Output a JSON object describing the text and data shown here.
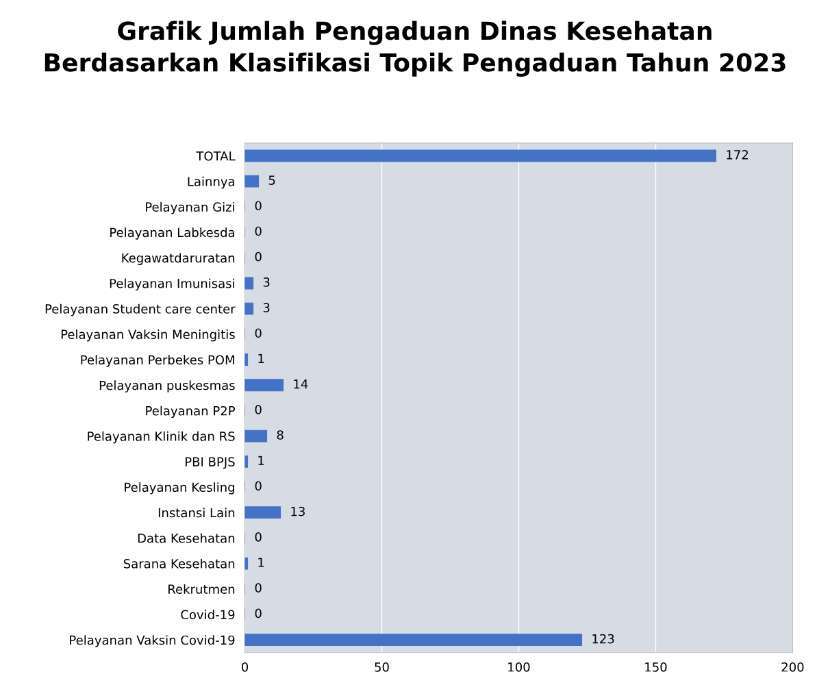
{
  "chart_data": {
    "type": "bar",
    "orientation": "horizontal",
    "title": "Grafik Jumlah Pengaduan Dinas Kesehatan\nBerdasarkan Klasifikasi Topik Pengaduan Tahun 2023",
    "categories": [
      "TOTAL",
      "Lainnya",
      "Pelayanan Gizi",
      "Pelayanan Labkesda",
      "Kegawatdaruratan",
      "Pelayanan Imunisasi",
      "Pelayanan Student care center",
      "Pelayanan Vaksin Meningitis",
      "Pelayanan Perbekes POM",
      "Pelayanan puskesmas",
      "Pelayanan P2P",
      "Pelayanan Klinik dan RS",
      "PBI BPJS",
      "Pelayanan Kesling",
      "Instansi Lain",
      "Data Kesehatan",
      "Sarana Kesehatan",
      "Rekrutmen",
      "Covid-19",
      "Pelayanan Vaksin Covid-19"
    ],
    "values": [
      172,
      5,
      0,
      0,
      0,
      3,
      3,
      0,
      1,
      14,
      0,
      8,
      1,
      0,
      13,
      0,
      1,
      0,
      0,
      123
    ],
    "color": "#4472c4",
    "data_labels": true,
    "xlim": [
      0,
      200
    ],
    "xticks": [
      0,
      50,
      100,
      150,
      200
    ],
    "grid": "x"
  }
}
